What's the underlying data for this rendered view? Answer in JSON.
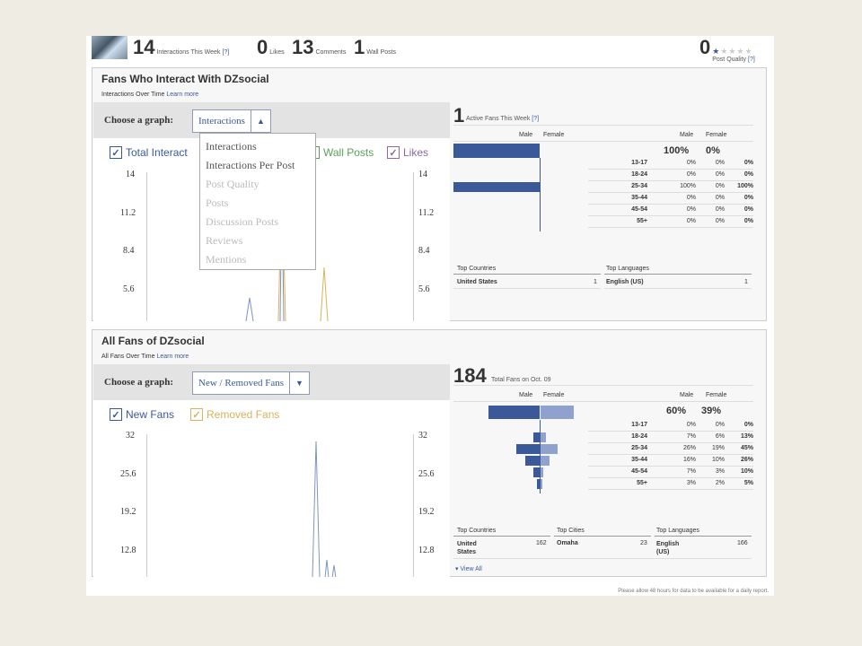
{
  "topbar": {
    "interactions_num": "14",
    "interactions_label": "Interactions This Week",
    "interactions_link": "[?]",
    "likes_num": "0",
    "likes_label": "Likes",
    "comments_num": "13",
    "comments_label": "Comments",
    "wallposts_num": "1",
    "wallposts_label": "Wall Posts",
    "quality_num": "0",
    "quality_label": "Post Quality",
    "quality_link": "[?]",
    "quality_stars": 1
  },
  "interact_panel": {
    "title": "Fans Who Interact With DZsocial",
    "subtitle": "Interactions Over Time",
    "learn_more": "Learn more",
    "choose_label": "Choose a graph:",
    "selected": "Interactions",
    "dropdown": [
      {
        "label": "Interactions",
        "enabled": true
      },
      {
        "label": "Interactions Per Post",
        "enabled": true
      },
      {
        "label": "Post Quality",
        "enabled": false
      },
      {
        "label": "Posts",
        "enabled": false
      },
      {
        "label": "Discussion Posts",
        "enabled": false
      },
      {
        "label": "Reviews",
        "enabled": false
      },
      {
        "label": "Mentions",
        "enabled": false
      }
    ],
    "legend": {
      "total": "Total Interact",
      "wall": "Wall Posts",
      "likes": "Likes"
    },
    "y_ticks": [
      "14",
      "11.2",
      "8.4",
      "5.6"
    ],
    "active_num": "1",
    "active_label": "Active Fans This Week",
    "active_link": "[?]",
    "gender_header": {
      "male": "Male",
      "female": "Female"
    },
    "totals": {
      "male": "100%",
      "female": "0%"
    },
    "rows": [
      {
        "age": "13-17",
        "male": "0%",
        "female": "0%",
        "total": "0%",
        "m": 0,
        "f": 0
      },
      {
        "age": "18-24",
        "male": "0%",
        "female": "0%",
        "total": "0%",
        "m": 0,
        "f": 0
      },
      {
        "age": "25-34",
        "male": "100%",
        "female": "0%",
        "total": "100%",
        "m": 100,
        "f": 0
      },
      {
        "age": "35-44",
        "male": "0%",
        "female": "0%",
        "total": "0%",
        "m": 0,
        "f": 0
      },
      {
        "age": "45-54",
        "male": "0%",
        "female": "0%",
        "total": "0%",
        "m": 0,
        "f": 0
      },
      {
        "age": "55+",
        "male": "0%",
        "female": "0%",
        "total": "0%",
        "m": 0,
        "f": 0
      }
    ],
    "top_countries_label": "Top Countries",
    "top_languages_label": "Top Languages",
    "country": "United States",
    "country_count": "1",
    "language": "English (US)",
    "language_count": "1"
  },
  "fans_panel": {
    "title": "All Fans of DZsocial",
    "subtitle": "All Fans Over Time",
    "learn_more": "Learn more",
    "choose_label": "Choose a graph:",
    "selected": "New / Removed Fans",
    "legend": {
      "new": "New Fans",
      "removed": "Removed Fans"
    },
    "y_ticks": [
      "32",
      "25.6",
      "19.2",
      "12.8"
    ],
    "total_num": "184",
    "total_label": "Total Fans on Oct. 09",
    "gender_header": {
      "male": "Male",
      "female": "Female"
    },
    "totals": {
      "male": "60%",
      "female": "39%",
      "m": 60,
      "f": 39
    },
    "rows": [
      {
        "age": "13-17",
        "male": "0%",
        "female": "0%",
        "total": "0%",
        "m": 0,
        "f": 0
      },
      {
        "age": "18-24",
        "male": "7%",
        "female": "6%",
        "total": "13%",
        "m": 7,
        "f": 6
      },
      {
        "age": "25-34",
        "male": "26%",
        "female": "19%",
        "total": "45%",
        "m": 26,
        "f": 19
      },
      {
        "age": "35-44",
        "male": "16%",
        "female": "10%",
        "total": "26%",
        "m": 16,
        "f": 10
      },
      {
        "age": "45-54",
        "male": "7%",
        "female": "3%",
        "total": "10%",
        "m": 7,
        "f": 3
      },
      {
        "age": "55+",
        "male": "3%",
        "female": "2%",
        "total": "5%",
        "m": 3,
        "f": 2
      }
    ],
    "top_countries_label": "Top Countries",
    "top_cities_label": "Top Cities",
    "top_languages_label": "Top Languages",
    "country": "United States",
    "country_count": "162",
    "city": "Omaha",
    "city_count": "23",
    "language": "English (US)",
    "language_count": "166",
    "view_all": "View All"
  },
  "footer": "Please allow 48 hours for data to be available for a daily report.",
  "colors": {
    "brand": "#3b5998",
    "female": "#8fa2ce",
    "wall": "#5aa05a",
    "likes": "#8a6aa0",
    "removed": "#d9b25a"
  }
}
